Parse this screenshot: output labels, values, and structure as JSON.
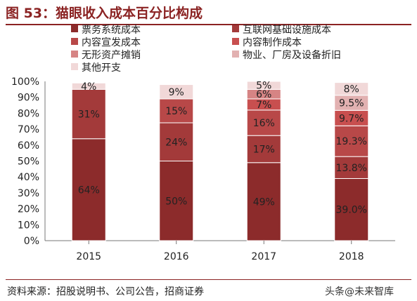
{
  "figure": {
    "title": "图 53：猫眼收入成本百分比构成",
    "source": "资料来源：招股说明书、公司公告，招商证券",
    "watermark": "头条@未来智库"
  },
  "chart_data": {
    "type": "bar",
    "stacked": true,
    "categories": [
      "2015",
      "2016",
      "2017",
      "2018"
    ],
    "ylim": [
      0,
      100
    ],
    "y_ticks": [
      "0%",
      "10%",
      "20%",
      "30%",
      "40%",
      "50%",
      "60%",
      "70%",
      "80%",
      "90%",
      "100%"
    ],
    "legend_position": "top",
    "series": [
      {
        "name": "票务系统成本",
        "color": "#8c2b2b",
        "values": [
          64,
          50,
          49,
          39.0
        ],
        "labels": [
          "64%",
          "50%",
          "49%",
          "39.0%"
        ]
      },
      {
        "name": "互联网基础设施成本",
        "color": "#a33a3a",
        "values": [
          31,
          24,
          17,
          13.8
        ],
        "labels": [
          "31%",
          "24%",
          "17%",
          "13.8%"
        ]
      },
      {
        "name": "内容宣发成本",
        "color": "#b84848",
        "values": [
          0,
          15,
          16,
          19.3
        ],
        "labels": [
          "",
          "15%",
          "16%",
          "19.3%"
        ]
      },
      {
        "name": "内容制作成本",
        "color": "#c84f4f",
        "values": [
          0,
          0,
          7,
          9.7
        ],
        "labels": [
          "",
          "",
          "7%",
          "9.7%"
        ]
      },
      {
        "name": "无形资产摊销",
        "color": "#d68484",
        "values": [
          0,
          0,
          6,
          0
        ],
        "labels": [
          "",
          "",
          "6%",
          ""
        ]
      },
      {
        "name": "物业、厂房及设备折旧",
        "color": "#e2b1b1",
        "values": [
          0,
          0,
          0,
          9.5
        ],
        "labels": [
          "",
          "",
          "",
          "9.5%"
        ]
      },
      {
        "name": "其他开支",
        "color": "#f1d8d8",
        "values": [
          4,
          9,
          5,
          8
        ],
        "labels": [
          "4%",
          "9%",
          "5%",
          "8%"
        ]
      }
    ]
  }
}
